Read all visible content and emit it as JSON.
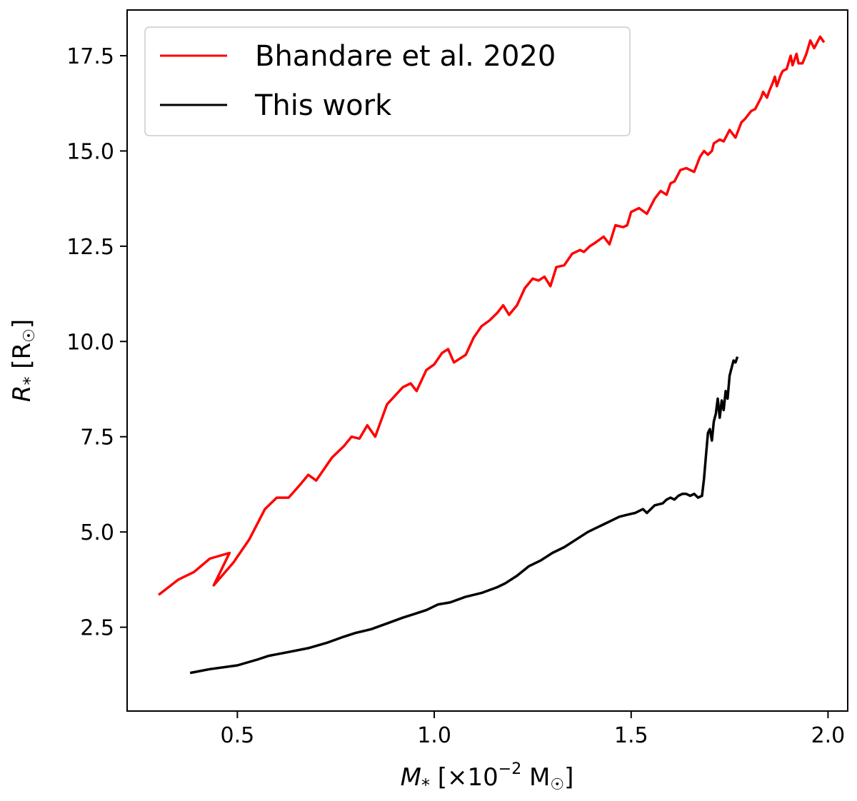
{
  "chart_data": {
    "type": "line",
    "title": "",
    "xlabel": {
      "symbol": "M",
      "sub": "*",
      "prefix": " [×10",
      "exp": "−2",
      "unit": " M",
      "sun": "☉",
      "close": "]"
    },
    "ylabel": {
      "symbol": "R",
      "sub": "*",
      "unit": " [R",
      "sun": "☉",
      "close": "]"
    },
    "xlim": [
      0.22,
      2.05
    ],
    "ylim": [
      0.3,
      18.7
    ],
    "xticks": [
      0.5,
      1.0,
      1.5,
      2.0
    ],
    "xtick_labels": [
      "0.5",
      "1.0",
      "1.5",
      "2.0"
    ],
    "yticks": [
      2.5,
      5.0,
      7.5,
      10.0,
      12.5,
      15.0,
      17.5
    ],
    "ytick_labels": [
      "2.5",
      "5.0",
      "7.5",
      "10.0",
      "12.5",
      "15.0",
      "17.5"
    ],
    "grid": false,
    "legend": "top-left",
    "series": [
      {
        "name": "Bhandare et al. 2020",
        "color": "#ff0000",
        "x": [
          0.3,
          0.35,
          0.39,
          0.43,
          0.48,
          0.44,
          0.49,
          0.53,
          0.57,
          0.6,
          0.63,
          0.66,
          0.68,
          0.7,
          0.74,
          0.77,
          0.79,
          0.81,
          0.83,
          0.85,
          0.88,
          0.92,
          0.94,
          0.955,
          0.98,
          1.0,
          1.02,
          1.035,
          1.05,
          1.08,
          1.1,
          1.12,
          1.14,
          1.16,
          1.175,
          1.19,
          1.21,
          1.23,
          1.25,
          1.265,
          1.28,
          1.295,
          1.31,
          1.33,
          1.35,
          1.37,
          1.38,
          1.395,
          1.41,
          1.43,
          1.445,
          1.46,
          1.48,
          1.49,
          1.5,
          1.52,
          1.54,
          1.56,
          1.575,
          1.59,
          1.6,
          1.61,
          1.625,
          1.64,
          1.66,
          1.675,
          1.685,
          1.695,
          1.705,
          1.71,
          1.725,
          1.735,
          1.75,
          1.765,
          1.78,
          1.79,
          1.805,
          1.815,
          1.83,
          1.835,
          1.845,
          1.85,
          1.86,
          1.865,
          1.87,
          1.88,
          1.885,
          1.895,
          1.905,
          1.91,
          1.92,
          1.925,
          1.935,
          1.945,
          1.955,
          1.965,
          1.98,
          1.99
        ],
        "y": [
          3.35,
          3.75,
          3.95,
          4.3,
          4.45,
          3.6,
          4.2,
          4.8,
          5.6,
          5.9,
          5.9,
          6.25,
          6.5,
          6.35,
          6.95,
          7.25,
          7.5,
          7.45,
          7.8,
          7.5,
          8.35,
          8.8,
          8.9,
          8.7,
          9.25,
          9.4,
          9.7,
          9.8,
          9.45,
          9.65,
          10.1,
          10.4,
          10.55,
          10.75,
          10.95,
          10.7,
          10.95,
          11.4,
          11.65,
          11.6,
          11.7,
          11.45,
          11.95,
          12.0,
          12.3,
          12.4,
          12.35,
          12.5,
          12.6,
          12.75,
          12.55,
          13.05,
          13.0,
          13.05,
          13.4,
          13.5,
          13.35,
          13.75,
          13.95,
          13.85,
          14.15,
          14.2,
          14.5,
          14.55,
          14.45,
          14.85,
          15.0,
          14.9,
          15.0,
          15.2,
          15.3,
          15.25,
          15.55,
          15.35,
          15.75,
          15.85,
          16.05,
          16.1,
          16.4,
          16.55,
          16.4,
          16.55,
          16.8,
          16.95,
          16.7,
          17.0,
          17.1,
          17.15,
          17.5,
          17.25,
          17.55,
          17.3,
          17.3,
          17.55,
          17.9,
          17.7,
          18.0,
          17.85
        ]
      },
      {
        "name": "This work",
        "color": "#000000",
        "x": [
          0.38,
          0.43,
          0.5,
          0.55,
          0.58,
          0.63,
          0.68,
          0.73,
          0.77,
          0.8,
          0.84,
          0.88,
          0.92,
          0.95,
          0.98,
          1.01,
          1.04,
          1.08,
          1.12,
          1.16,
          1.18,
          1.21,
          1.24,
          1.27,
          1.3,
          1.33,
          1.36,
          1.39,
          1.41,
          1.43,
          1.45,
          1.47,
          1.49,
          1.51,
          1.52,
          1.53,
          1.54,
          1.56,
          1.58,
          1.59,
          1.6,
          1.61,
          1.62,
          1.63,
          1.64,
          1.65,
          1.66,
          1.67,
          1.68,
          1.685,
          1.69,
          1.695,
          1.7,
          1.705,
          1.71,
          1.715,
          1.72,
          1.725,
          1.73,
          1.735,
          1.74,
          1.745,
          1.75,
          1.755,
          1.76,
          1.765,
          1.77
        ],
        "y": [
          1.3,
          1.4,
          1.5,
          1.65,
          1.75,
          1.85,
          1.95,
          2.1,
          2.25,
          2.35,
          2.45,
          2.6,
          2.75,
          2.85,
          2.95,
          3.1,
          3.15,
          3.3,
          3.4,
          3.55,
          3.65,
          3.85,
          4.1,
          4.25,
          4.45,
          4.6,
          4.8,
          5.0,
          5.1,
          5.2,
          5.3,
          5.4,
          5.45,
          5.5,
          5.55,
          5.6,
          5.5,
          5.7,
          5.75,
          5.85,
          5.9,
          5.85,
          5.95,
          6.0,
          6.0,
          5.95,
          6.0,
          5.9,
          5.95,
          6.4,
          7.0,
          7.6,
          7.7,
          7.4,
          7.9,
          8.1,
          8.5,
          8.0,
          8.45,
          8.2,
          8.7,
          8.5,
          9.1,
          9.3,
          9.5,
          9.45,
          9.6
        ]
      }
    ]
  }
}
